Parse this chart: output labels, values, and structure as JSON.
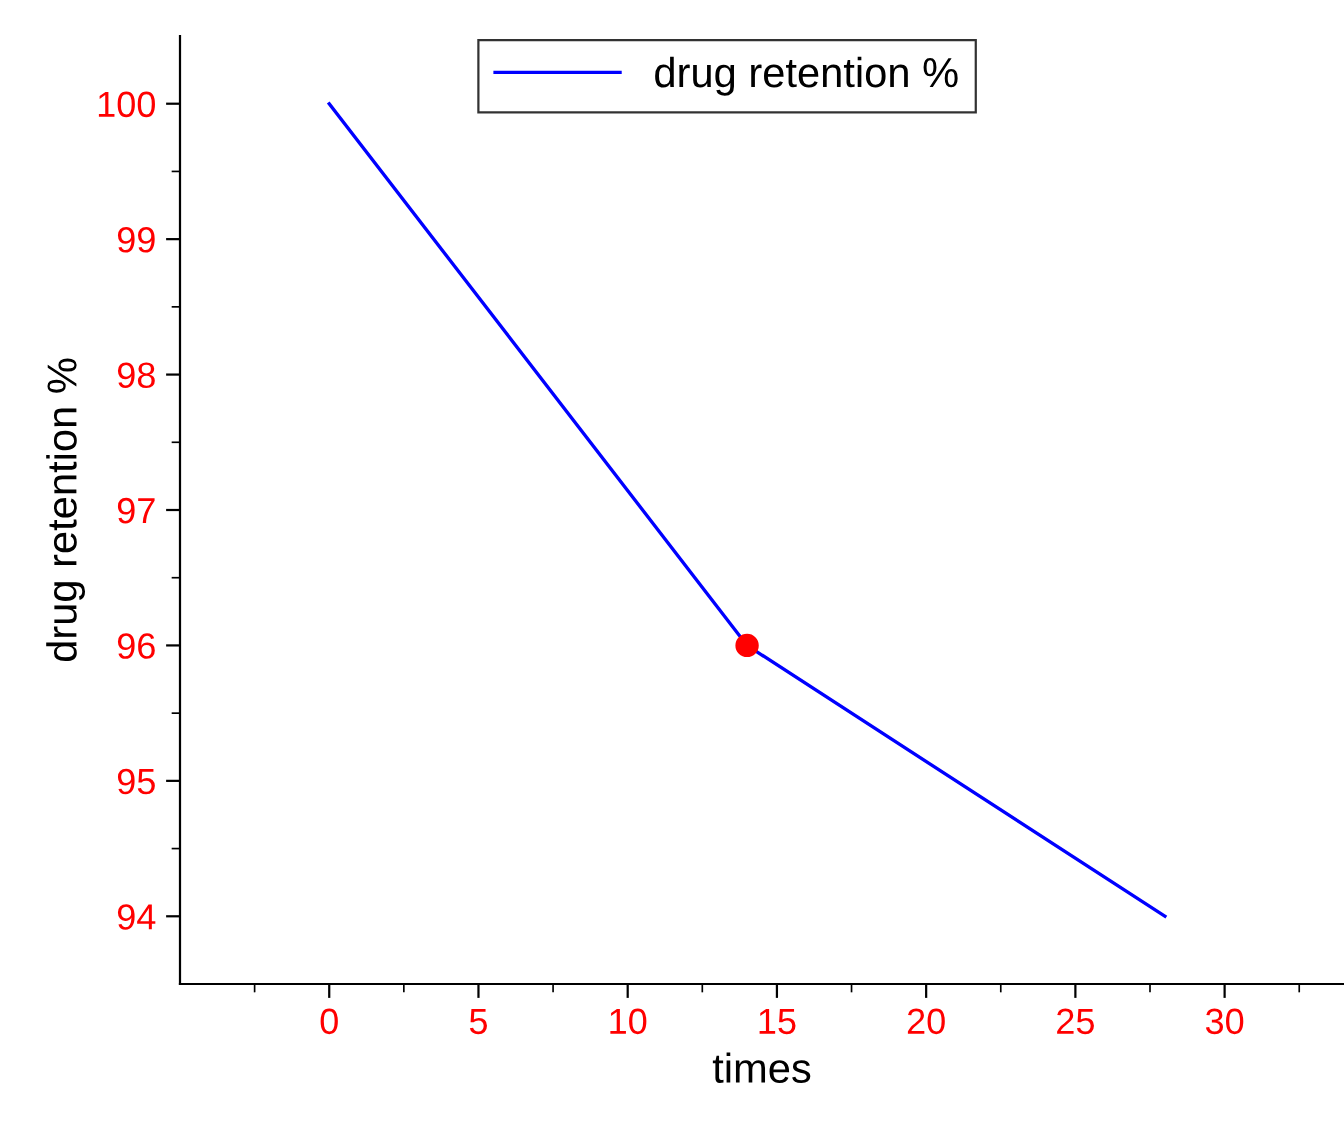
{
  "chart_data": {
    "type": "line",
    "xlabel": "times",
    "ylabel": "drug retention %",
    "series": [
      {
        "name": "drug retention %",
        "color": "#0000ff",
        "x": [
          0,
          14,
          28
        ],
        "values": [
          100,
          96,
          94
        ],
        "marker": "none"
      },
      {
        "type": "scatter",
        "color": "#ff0000",
        "x": [
          14
        ],
        "values": [
          96
        ],
        "marker": "circle"
      }
    ],
    "xlim": [
      -5,
      34
    ],
    "xticks": [
      0,
      5,
      10,
      15,
      20,
      25,
      30
    ],
    "ylim": [
      93.5,
      100.5
    ],
    "yticks": [
      94,
      95,
      96,
      97,
      98,
      99,
      100
    ],
    "grid": false,
    "legend": "top"
  }
}
